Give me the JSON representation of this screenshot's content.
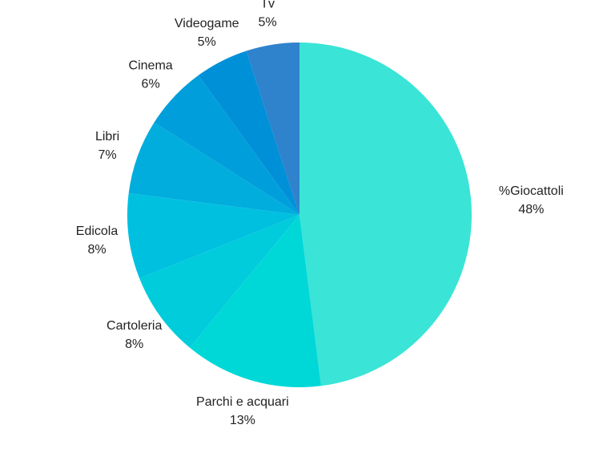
{
  "chart_data": {
    "type": "pie",
    "categories": [
      "%Giocattoli",
      "Parchi e acquari",
      "Cartoleria",
      "Edicola",
      "Libri",
      "Cinema",
      "Videogame",
      "Tv"
    ],
    "values": [
      48,
      13,
      8,
      8,
      7,
      6,
      5,
      5
    ],
    "value_labels": [
      "48%",
      "13%",
      "8%",
      "8%",
      "7%",
      "6%",
      "5%",
      "5%"
    ],
    "colors": [
      "#3ae4d6",
      "#00d8d8",
      "#00ccdc",
      "#00c0e0",
      "#00addc",
      "#009fdc",
      "#0090d8",
      "#2f82cc"
    ]
  }
}
